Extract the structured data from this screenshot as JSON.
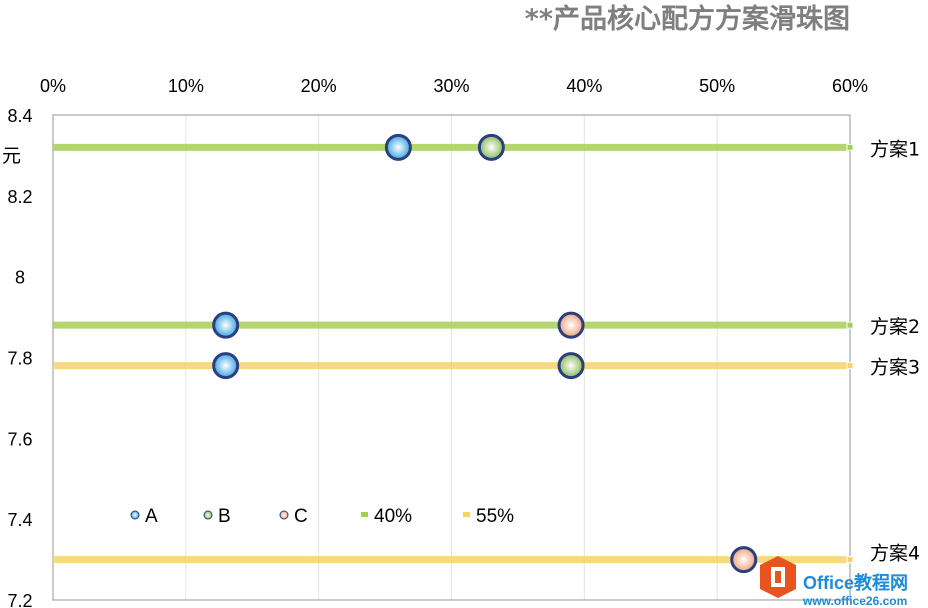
{
  "chart_data": {
    "type": "scatter",
    "title": "**产品核心配方方案滑珠图",
    "ylabel": "元",
    "xlim": [
      0,
      60
    ],
    "ylim": [
      7.2,
      8.4
    ],
    "x_ticks": [
      "0%",
      "10%",
      "20%",
      "30%",
      "40%",
      "50%",
      "60%"
    ],
    "y_ticks": [
      "8.4",
      "8.2",
      "8",
      "7.8",
      "7.6",
      "7.4",
      "7.2"
    ],
    "x_axis_position": "top",
    "grid": "vertical",
    "legend_position": "bottom-left inside",
    "rows": [
      {
        "label": "方案1",
        "y": 8.32,
        "line": "40%"
      },
      {
        "label": "方案2",
        "y": 7.88,
        "line": "40%"
      },
      {
        "label": "方案3",
        "y": 7.78,
        "line": "55%"
      },
      {
        "label": "方案4",
        "y": 7.3,
        "line": "55%"
      }
    ],
    "series": [
      {
        "name": "A",
        "color": "#5bb8ec",
        "points": [
          {
            "x": 26,
            "y": 8.32
          },
          {
            "x": 13,
            "y": 7.88
          },
          {
            "x": 13,
            "y": 7.78
          }
        ]
      },
      {
        "name": "B",
        "color": "#9cc96b",
        "points": [
          {
            "x": 33,
            "y": 8.32
          },
          {
            "x": 39,
            "y": 7.78
          }
        ]
      },
      {
        "name": "C",
        "color": "#f2a98a",
        "points": [
          {
            "x": 39,
            "y": 7.88
          },
          {
            "x": 52,
            "y": 7.3
          }
        ]
      },
      {
        "name": "40%",
        "color": "#a6cf55",
        "kind": "line"
      },
      {
        "name": "55%",
        "color": "#f5d36a",
        "kind": "line"
      }
    ]
  },
  "watermark": {
    "name": "Office教程网",
    "url": "www.office26.com"
  }
}
